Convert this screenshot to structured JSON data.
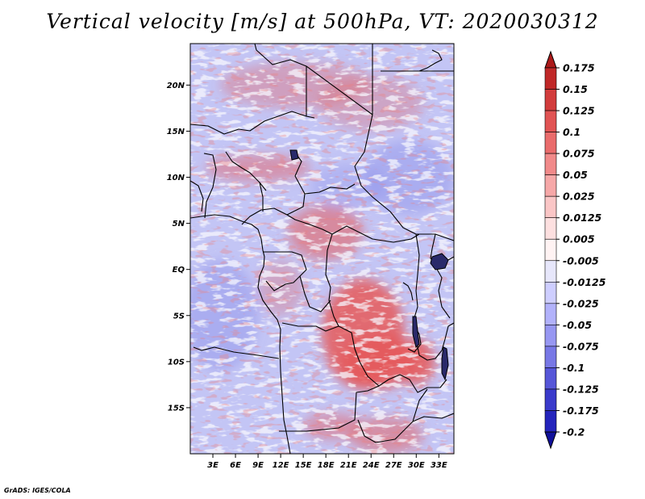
{
  "title": "Vertical velocity [m/s] at 500hPa, VT: 2020030312",
  "credit": "GrADS: IGES/COLA",
  "chart_data": {
    "type": "heatmap",
    "title": "Vertical velocity [m/s] at 500hPa, VT: 2020030312",
    "variable": "Vertical velocity",
    "units": "m/s",
    "level": "500hPa",
    "valid_time": "2020030312",
    "lon_range": [
      0,
      35
    ],
    "lat_range": [
      -20,
      24.5
    ],
    "x_ticks": [
      {
        "value": 3,
        "label": "3E"
      },
      {
        "value": 6,
        "label": "6E"
      },
      {
        "value": 9,
        "label": "9E"
      },
      {
        "value": 12,
        "label": "12E"
      },
      {
        "value": 15,
        "label": "15E"
      },
      {
        "value": 18,
        "label": "18E"
      },
      {
        "value": 21,
        "label": "21E"
      },
      {
        "value": 24,
        "label": "24E"
      },
      {
        "value": 27,
        "label": "27E"
      },
      {
        "value": 30,
        "label": "30E"
      },
      {
        "value": 33,
        "label": "33E"
      }
    ],
    "y_ticks": [
      {
        "value": 20,
        "label": "20N"
      },
      {
        "value": 15,
        "label": "15N"
      },
      {
        "value": 10,
        "label": "10N"
      },
      {
        "value": 5,
        "label": "5N"
      },
      {
        "value": 0,
        "label": "EQ"
      },
      {
        "value": -5,
        "label": "5S"
      },
      {
        "value": -10,
        "label": "10S"
      },
      {
        "value": -15,
        "label": "15S"
      }
    ],
    "colorbar": {
      "labels": [
        "0.175",
        "0.15",
        "0.125",
        "0.1",
        "0.075",
        "0.05",
        "0.025",
        "0.0125",
        "0.005",
        "-0.005",
        "-0.0125",
        "-0.025",
        "-0.05",
        "-0.075",
        "-0.1",
        "-0.125",
        "-0.175",
        "-0.2"
      ],
      "colors": [
        "#ab1a1a",
        "#c02828",
        "#d23c3c",
        "#e15454",
        "#ea6c6c",
        "#f18a8a",
        "#f6a8a8",
        "#fac6c6",
        "#fde0e0",
        "#fff3f3",
        "#e7e7fb",
        "#ceceff",
        "#b2b2fb",
        "#9797f2",
        "#7878e6",
        "#5656d8",
        "#3a3acb",
        "#2424bc",
        "#10109a"
      ]
    },
    "pattern": {
      "background": "#c3c5f5",
      "fields": [
        {
          "type": "red",
          "lon": 23,
          "lat": -7,
          "rx": 5.5,
          "ry": 6,
          "op": 0.85
        },
        {
          "type": "red",
          "lon": 25,
          "lat": -10,
          "rx": 5,
          "ry": 3,
          "op": 0.8
        },
        {
          "type": "red",
          "lon": 30,
          "lat": -10,
          "rx": 2.5,
          "ry": 2.5,
          "op": 0.85
        },
        {
          "type": "red",
          "lon": 18,
          "lat": 4,
          "rx": 5,
          "ry": 3,
          "op": 0.55
        },
        {
          "type": "red",
          "lon": 9,
          "lat": 11,
          "rx": 7,
          "ry": 1.5,
          "op": 0.45
        },
        {
          "type": "red",
          "lon": 14,
          "lat": 20,
          "rx": 10,
          "ry": 2.5,
          "op": 0.35
        },
        {
          "type": "red",
          "lon": 24,
          "lat": 18,
          "rx": 7,
          "ry": 3,
          "op": 0.3
        },
        {
          "type": "red",
          "lon": 19,
          "lat": -17,
          "rx": 4,
          "ry": 1.5,
          "op": 0.45
        },
        {
          "type": "red",
          "lon": 26,
          "lat": -18,
          "rx": 5,
          "ry": 2,
          "op": 0.5
        },
        {
          "type": "red",
          "lon": 12,
          "lat": -2,
          "rx": 3,
          "ry": 3,
          "op": 0.3
        },
        {
          "type": "blue",
          "lon": 4,
          "lat": -5,
          "rx": 5,
          "ry": 6,
          "op": 0.35
        },
        {
          "type": "blue",
          "lon": 29,
          "lat": 10,
          "rx": 6,
          "ry": 4,
          "op": 0.35
        },
        {
          "type": "blue",
          "lon": 21,
          "lat": 9,
          "rx": 5,
          "ry": 2.5,
          "op": 0.25
        }
      ]
    }
  }
}
